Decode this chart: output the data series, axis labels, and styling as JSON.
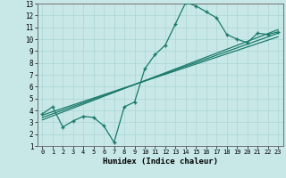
{
  "title": "",
  "xlabel": "Humidex (Indice chaleur)",
  "bg_color": "#c8e8e8",
  "grid_color": "#b0d8d8",
  "line_color": "#1a7a6a",
  "xlim": [
    -0.5,
    23.5
  ],
  "ylim": [
    1,
    13
  ],
  "xticks": [
    0,
    1,
    2,
    3,
    4,
    5,
    6,
    7,
    8,
    9,
    10,
    11,
    12,
    13,
    14,
    15,
    16,
    17,
    18,
    19,
    20,
    21,
    22,
    23
  ],
  "yticks": [
    1,
    2,
    3,
    4,
    5,
    6,
    7,
    8,
    9,
    10,
    11,
    12,
    13
  ],
  "data_x": [
    0,
    1,
    2,
    3,
    4,
    5,
    6,
    7,
    8,
    9,
    10,
    11,
    12,
    13,
    14,
    15,
    16,
    17,
    18,
    19,
    20,
    21,
    22,
    23
  ],
  "data_y": [
    3.7,
    4.3,
    2.6,
    3.1,
    3.5,
    3.4,
    2.7,
    1.3,
    4.3,
    4.7,
    7.5,
    8.7,
    9.5,
    11.3,
    13.1,
    12.8,
    12.3,
    11.8,
    10.4,
    10.0,
    9.7,
    10.5,
    10.4,
    10.6
  ],
  "line1_x": [
    0,
    23
  ],
  "line1_y": [
    3.6,
    10.2
  ],
  "line2_x": [
    0,
    23
  ],
  "line2_y": [
    3.4,
    10.5
  ],
  "line3_x": [
    0,
    23
  ],
  "line3_y": [
    3.2,
    10.8
  ]
}
